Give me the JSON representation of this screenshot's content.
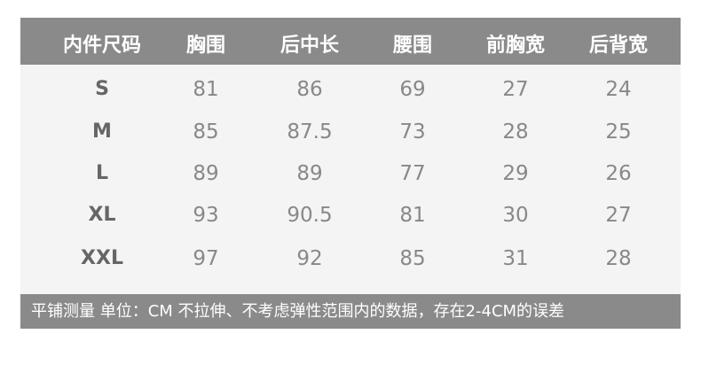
{
  "columns": [
    "内件尺码",
    "胸围",
    "后中长",
    "腰围",
    "前胸宽",
    "后背宽"
  ],
  "rows": [
    [
      "S",
      "81",
      "86",
      "69",
      "27",
      "24"
    ],
    [
      "M",
      "85",
      "87.5",
      "73",
      "28",
      "25"
    ],
    [
      "L",
      "89",
      "89",
      "77",
      "29",
      "26"
    ],
    [
      "XL",
      "93",
      "90.5",
      "81",
      "30",
      "27"
    ],
    [
      "XXL",
      "97",
      "92",
      "85",
      "31",
      "28"
    ]
  ],
  "footer": "平铺测量 单位：CM 不拉伸、不考虑弹性范围内的数据，存在2-4CM的误差",
  "colors": {
    "header_bg": "#8a8a8a",
    "body_bg": "#f4f4f4",
    "size_text": "#666666",
    "value_text": "#888888"
  }
}
